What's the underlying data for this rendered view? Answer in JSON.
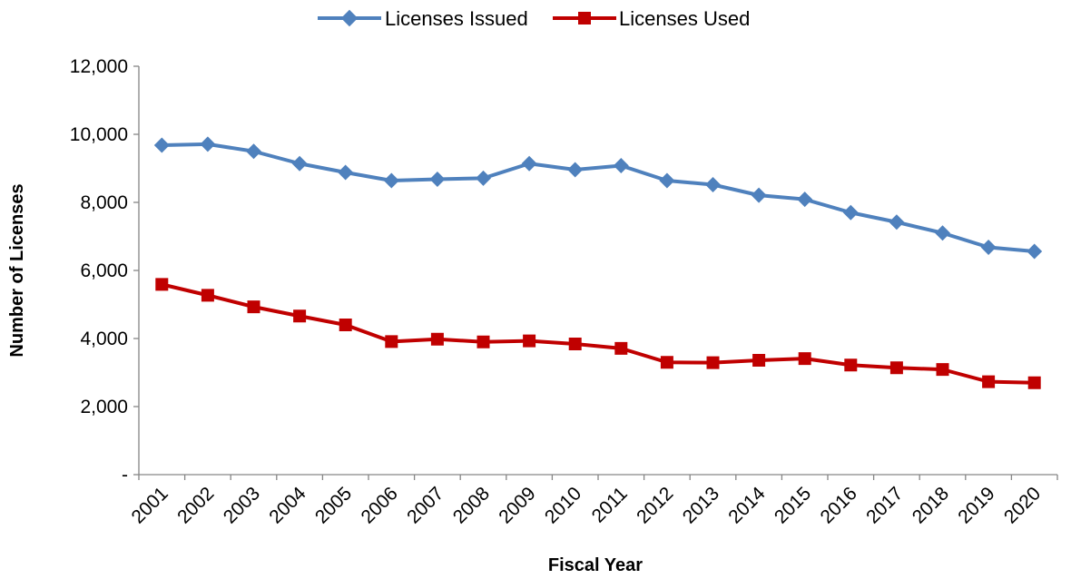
{
  "chart_data": {
    "type": "line",
    "title": "",
    "xlabel": "Fiscal Year",
    "ylabel": "Number of Licenses",
    "categories": [
      "2001",
      "2002",
      "2003",
      "2004",
      "2005",
      "2006",
      "2007",
      "2008",
      "2009",
      "2010",
      "2011",
      "2012",
      "2013",
      "2014",
      "2015",
      "2016",
      "2017",
      "2018",
      "2019",
      "2020"
    ],
    "ylim": [
      0,
      12000
    ],
    "yticks": [
      0,
      2000,
      4000,
      6000,
      8000,
      10000,
      12000
    ],
    "ytick_labels": [
      "-",
      "2,000",
      "4,000",
      "6,000",
      "8,000",
      "10,000",
      "12,000"
    ],
    "grid": false,
    "legend_position": "top-center",
    "series": [
      {
        "name": "Licenses Issued",
        "color": "#4F81BD",
        "marker": "diamond",
        "values": [
          9680,
          9710,
          9500,
          9140,
          8880,
          8640,
          8680,
          8710,
          9140,
          8960,
          9080,
          8640,
          8520,
          8210,
          8090,
          7700,
          7420,
          7100,
          6680,
          6560
        ]
      },
      {
        "name": "Licenses Used",
        "color": "#C00000",
        "marker": "square",
        "values": [
          5590,
          5270,
          4930,
          4660,
          4400,
          3910,
          3980,
          3900,
          3930,
          3840,
          3710,
          3300,
          3290,
          3360,
          3410,
          3220,
          3140,
          3090,
          2730,
          2700
        ]
      }
    ]
  }
}
